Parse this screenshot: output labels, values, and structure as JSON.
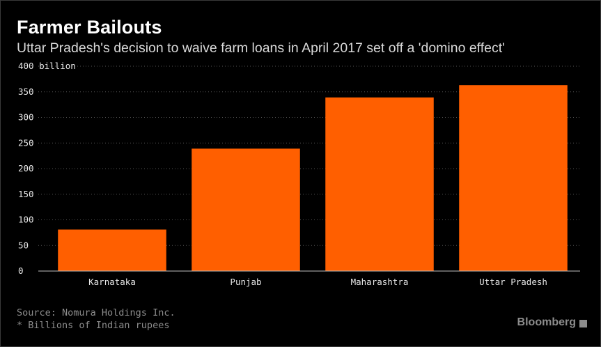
{
  "chart_data": {
    "type": "bar",
    "title": "Farmer Bailouts",
    "subtitle": "Uttar Pradesh's decision to waive farm loans in April 2017 set off a 'domino effect'",
    "categories": [
      "Karnataka",
      "Punjab",
      "Maharashtra",
      "Uttar Pradesh"
    ],
    "values": [
      81,
      239,
      339,
      363
    ],
    "yunit": "billion",
    "ylim": [
      0,
      400
    ],
    "yticks": [
      0,
      50,
      100,
      150,
      200,
      250,
      300,
      350,
      400
    ],
    "grid": true,
    "colors": {
      "bar": "#ff5f00",
      "background": "#000000",
      "grid": "#555555"
    }
  },
  "footer": {
    "source": "Source: Nomura Holdings Inc.",
    "note": "* Billions of Indian rupees",
    "brand": "Bloomberg"
  }
}
